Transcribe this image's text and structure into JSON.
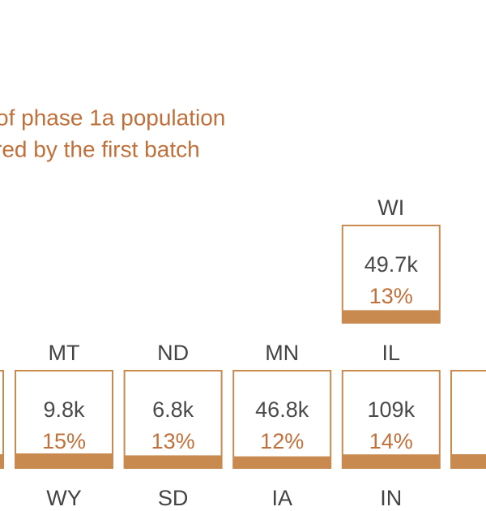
{
  "legend": {
    "lines": [
      "of phase 1a population",
      "red by the first batch"
    ]
  },
  "box_color": "#c98a50",
  "tiles": [
    {
      "state": "WI",
      "count": "49.7k",
      "pct": 13,
      "pct_label": "13%",
      "col": 3,
      "row": 0
    },
    {
      "state": "MT",
      "count": "9.8k",
      "pct": 15,
      "pct_label": "15%",
      "col": 0,
      "row": 1
    },
    {
      "state": "ND",
      "count": "6.8k",
      "pct": 13,
      "pct_label": "13%",
      "col": 1,
      "row": 1
    },
    {
      "state": "MN",
      "count": "46.8k",
      "pct": 12,
      "pct_label": "12%",
      "col": 2,
      "row": 1
    },
    {
      "state": "IL",
      "count": "109k",
      "pct": 14,
      "pct_label": "14%",
      "col": 3,
      "row": 1
    }
  ],
  "next_row_labels": [
    "WY",
    "SD",
    "IA",
    "IN"
  ]
}
